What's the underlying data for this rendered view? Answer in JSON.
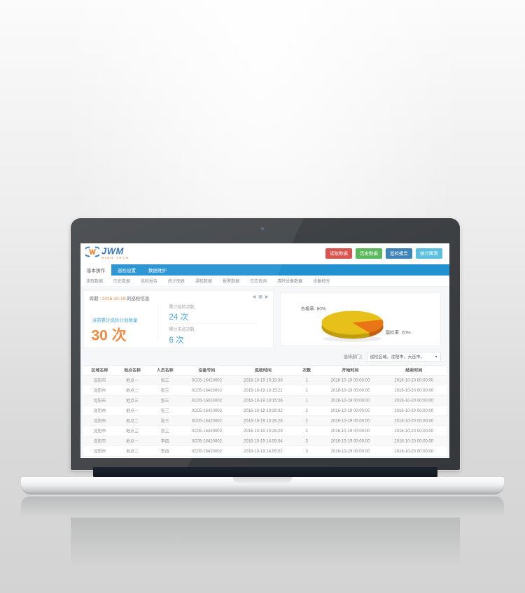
{
  "app": {
    "logo": {
      "name": "JWM",
      "sub": "HIGH TECH"
    },
    "header_buttons": [
      {
        "label": "读取数据",
        "color": "#d9534f"
      },
      {
        "label": "历史数据",
        "color": "#5cb85c"
      },
      {
        "label": "巡检报告",
        "color": "#3d85b8"
      },
      {
        "label": "统计图表",
        "color": "#5bc0de"
      }
    ],
    "tabs": [
      {
        "label": "基本操作"
      },
      {
        "label": "巡检设置"
      },
      {
        "label": "数据维护"
      }
    ],
    "submenu": [
      "读取数据",
      "历史数据",
      "巡检报告",
      "统计图表",
      "漏检数据",
      "报警数据",
      "日志查询",
      "清除设备数据",
      "设备校时"
    ],
    "period": {
      "prefix": "周期 :",
      "date": "2016-10-19",
      "suffix": "的巡检信息"
    },
    "stats": {
      "plan_label": "当前累计巡检计划数量",
      "plan_value": "30 次",
      "done_label": "累计巡检次数",
      "done_value": "24 次",
      "missed_label": "累计未巡次数",
      "missed_value": "6 次"
    },
    "pie": {
      "qualified_label": "合格率: 80%",
      "missed_label": "漏检率: 20%"
    },
    "filter": {
      "label": "选择部门：",
      "value": "巡检区域，沈阳市，大连市，"
    },
    "table": {
      "headers": [
        "区域名称",
        "地点名称",
        "人员名称",
        "设备号码",
        "巡检时间",
        "次数",
        "开始时间",
        "结束时间"
      ],
      "rows": [
        [
          "沈阳市",
          "地点一",
          "张三",
          "0C05-16420002",
          "2016-10-19 10:15:30",
          "1",
          "2016-10-19 00:00:00",
          "2016-10-20 00:00:00"
        ],
        [
          "沈阳市",
          "地点二",
          "张三",
          "0C05-16420002",
          "2016-10-19 10:15:22",
          "1",
          "2016-10-19 00:00:00",
          "2016-10-20 00:00:00"
        ],
        [
          "沈阳市",
          "地点三",
          "张三",
          "0C05-16420002",
          "2016-10-19 10:15:26",
          "1",
          "2016-10-19 00:00:00",
          "2016-10-20 00:00:00"
        ],
        [
          "沈阳市",
          "地点一",
          "张三",
          "0C05-16420002",
          "2016-10-19 10:28:32",
          "2",
          "2016-10-19 00:00:00",
          "2016-10-20 00:00:00"
        ],
        [
          "沈阳市",
          "地点二",
          "张三",
          "0C05-16420002",
          "2016-10-19 10:28:28",
          "2",
          "2016-10-19 00:00:00",
          "2016-10-20 00:00:00"
        ],
        [
          "沈阳市",
          "地点三",
          "张三",
          "0C05-16420002",
          "2016-10-19 10:28:29",
          "2",
          "2016-10-19 00:00:00",
          "2016-10-20 00:00:00"
        ],
        [
          "沈阳市",
          "地点一",
          "李四",
          "0C05-16420002",
          "2016-10-19 14:05:54",
          "3",
          "2016-10-19 00:00:00",
          "2016-10-20 00:00:00"
        ],
        [
          "沈阳市",
          "地点二",
          "李四",
          "0C05-16420002",
          "2016-10-19 14:05:52",
          "3",
          "2016-10-19 00:00:00",
          "2016-10-20 00:00:00"
        ]
      ]
    }
  },
  "chart_data": {
    "type": "pie",
    "labels": [
      "合格率",
      "漏检率"
    ],
    "values": [
      80,
      20
    ],
    "colors": [
      "#e7c119",
      "#ea7517"
    ],
    "annotations": [
      "合格率: 80%",
      "漏检率: 20%"
    ],
    "legend_position": "none",
    "style": "3d-pie"
  }
}
